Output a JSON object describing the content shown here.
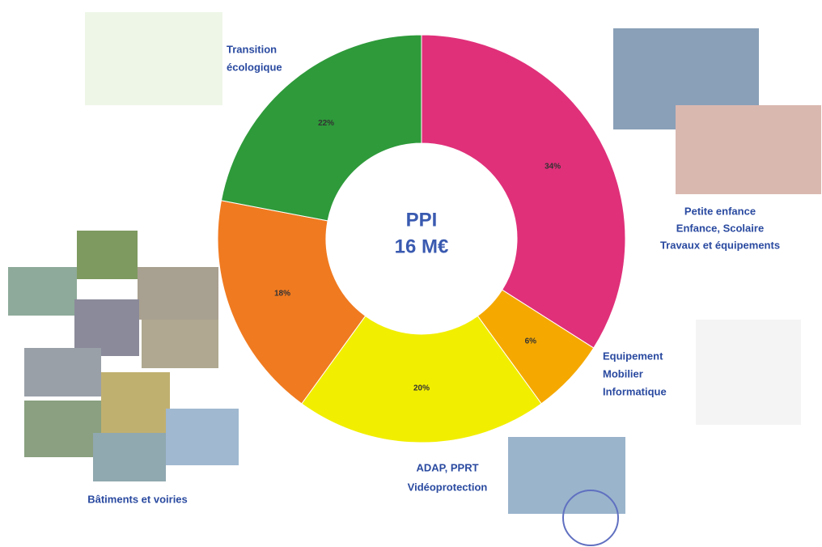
{
  "chart_data": {
    "type": "donut",
    "center_text": [
      "PPI",
      "16 M€"
    ],
    "categories": [
      [
        "Petite enfance",
        "Enfance, Scolaire",
        "Travaux et équipements"
      ],
      [
        "Equipement",
        "Mobilier",
        "Informatique"
      ],
      [
        "ADAP, PPRT",
        "Vidéoprotection"
      ],
      [
        "Bâtiments et voiries"
      ],
      [
        "Transition",
        "écologique"
      ]
    ],
    "values": [
      34,
      6,
      20,
      18,
      22
    ],
    "value_labels": [
      "34%",
      "6%",
      "20%",
      "18%",
      "22%"
    ],
    "colors": [
      "#e0307a",
      "#f5a800",
      "#f2ee00",
      "#f07a20",
      "#2e9a3a"
    ]
  }
}
